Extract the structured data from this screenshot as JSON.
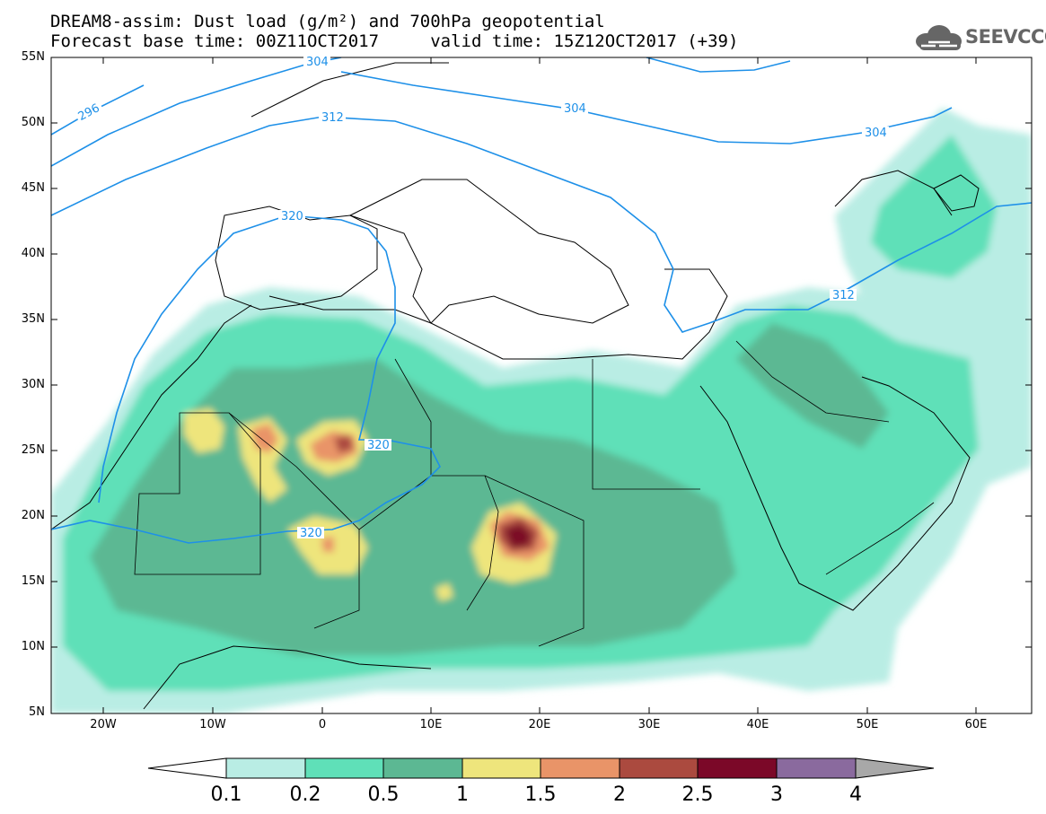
{
  "title_line1": "DREAM8-assim: Dust load (g/m²) and 700hPa geopotential",
  "title_line2": "Forecast base time: 00Z11OCT2017     valid time: 15Z12OCT2017 (+39)",
  "logo_text": "SEEVCCC",
  "lat_labels": [
    "55N",
    "50N",
    "45N",
    "40N",
    "35N",
    "30N",
    "25N",
    "20N",
    "15N",
    "10N",
    "5N"
  ],
  "lon_labels": [
    "20W",
    "10W",
    "0",
    "10E",
    "20E",
    "30E",
    "40E",
    "50E",
    "60E"
  ],
  "contour_labels": [
    "304",
    "296",
    "312",
    "304",
    "304",
    "320",
    "312",
    "320",
    "320"
  ],
  "colorbar": {
    "levels": [
      "0.1",
      "0.2",
      "0.5",
      "1",
      "1.5",
      "2",
      "2.5",
      "3",
      "4"
    ],
    "colors": [
      "#ffffff",
      "#b9ede4",
      "#5fe0b8",
      "#5cb893",
      "#eee57c",
      "#e99468",
      "#ab4a3f",
      "#7b0828",
      "#8a6a9e",
      "#a8a8a8"
    ]
  },
  "geopotential_line_color": "#1e90e8",
  "coastline_color": "#000000"
}
